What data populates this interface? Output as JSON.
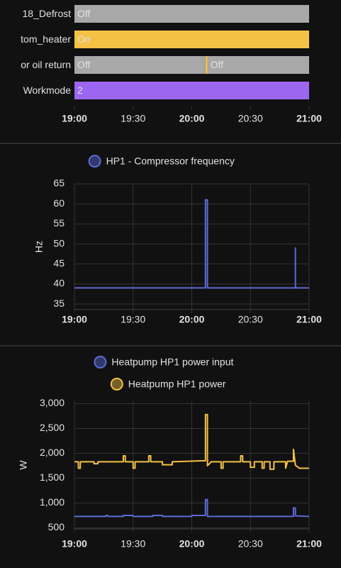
{
  "chart_data": [
    {
      "type": "timeline",
      "rows": [
        {
          "label": "18_Defrost",
          "segments": [
            {
              "start": "19:00",
              "end": "21:00",
              "label": "Off",
              "color": "#a8a8a8"
            }
          ]
        },
        {
          "label": "tom_heater",
          "segments": [
            {
              "start": "19:00",
              "end": "21:00",
              "label": "On",
              "color": "#f4c144"
            }
          ]
        },
        {
          "label": "or oil return",
          "segments": [
            {
              "start": "19:00",
              "end": "20:07",
              "label": "Off",
              "color": "#a8a8a8"
            },
            {
              "start": "20:07",
              "end": "20:08",
              "color": "#f4c144"
            },
            {
              "start": "20:08",
              "end": "21:00",
              "label": "Off",
              "color": "#a8a8a8"
            }
          ]
        },
        {
          "label": "Workmode",
          "segments": [
            {
              "start": "19:00",
              "end": "21:00",
              "label": "2",
              "color": "#9c66f0"
            }
          ]
        }
      ],
      "xlim": [
        "19:00",
        "21:00"
      ],
      "xticks": [
        "19:00",
        "19:30",
        "20:00",
        "20:30",
        "21:00"
      ]
    },
    {
      "type": "line",
      "series": [
        {
          "name": "HP1 - Compressor frequency",
          "color": "#5c6bd6",
          "x": [
            "19:00",
            "20:07",
            "20:07",
            "20:08",
            "20:08",
            "20:53",
            "20:53",
            "20:53",
            "21:00"
          ],
          "values": [
            39,
            39,
            61,
            61,
            39,
            39,
            49,
            39,
            39
          ]
        }
      ],
      "ylabel": "Hz",
      "ylim": [
        33.6,
        65
      ],
      "yticks": [
        35,
        40,
        45,
        50,
        55,
        60,
        65
      ],
      "xlim": [
        "19:00",
        "21:00"
      ],
      "xticks": [
        "19:00",
        "19:30",
        "20:00",
        "20:30",
        "21:00"
      ],
      "grid": true
    },
    {
      "type": "line",
      "series": [
        {
          "name": "Heatpump HP1 power input",
          "color": "#5c6bd6",
          "x": [
            "19:00",
            "19:16",
            "19:16",
            "19:17",
            "19:17",
            "19:25",
            "19:25",
            "19:30",
            "19:30",
            "19:40",
            "19:40",
            "19:45",
            "19:45",
            "20:00",
            "20:00",
            "20:07",
            "20:07",
            "20:08",
            "20:08",
            "20:52",
            "20:52",
            "20:53",
            "20:53",
            "21:00"
          ],
          "values": [
            730,
            730,
            750,
            750,
            730,
            730,
            750,
            750,
            730,
            730,
            750,
            750,
            730,
            730,
            750,
            750,
            1070,
            1070,
            730,
            730,
            900,
            900,
            740,
            730
          ]
        },
        {
          "name": "Heatpump HP1 power",
          "color": "#f4c144",
          "x": [
            "19:00",
            "19:02",
            "19:02",
            "19:03",
            "19:03",
            "19:10",
            "19:10",
            "19:12",
            "19:12",
            "19:25",
            "19:25",
            "19:26",
            "19:26",
            "19:30",
            "19:30",
            "19:31",
            "19:31",
            "19:38",
            "19:38",
            "19:39",
            "19:39",
            "19:45",
            "19:45",
            "19:50",
            "19:50",
            "20:05",
            "20:07",
            "20:07",
            "20:08",
            "20:08",
            "20:10",
            "20:15",
            "20:15",
            "20:16",
            "20:16",
            "20:25",
            "20:25",
            "20:26",
            "20:26",
            "20:30",
            "20:30",
            "20:32",
            "20:32",
            "20:36",
            "20:36",
            "20:37",
            "20:37",
            "20:40",
            "20:40",
            "20:42",
            "20:42",
            "20:48",
            "20:48",
            "20:49",
            "20:52",
            "20:52",
            "20:53",
            "20:55",
            "21:00"
          ],
          "values": [
            1830,
            1830,
            1700,
            1700,
            1830,
            1830,
            1790,
            1790,
            1830,
            1830,
            1950,
            1950,
            1830,
            1830,
            1700,
            1700,
            1830,
            1830,
            1950,
            1950,
            1830,
            1830,
            1770,
            1770,
            1830,
            1850,
            1850,
            2780,
            2780,
            1750,
            1830,
            1830,
            1700,
            1700,
            1830,
            1830,
            1950,
            1950,
            1830,
            1830,
            1720,
            1720,
            1830,
            1830,
            1700,
            1700,
            1830,
            1830,
            1680,
            1680,
            1830,
            1830,
            1700,
            1840,
            1840,
            2080,
            1760,
            1700,
            1700
          ]
        }
      ],
      "ylabel": "W",
      "ylim": [
        478,
        3050
      ],
      "yticks": [
        {
          "value": 500,
          "label": "500"
        },
        {
          "value": 1000,
          "label": "1,000"
        },
        {
          "value": 1500,
          "label": "1,500"
        },
        {
          "value": 2000,
          "label": "2,000"
        },
        {
          "value": 2500,
          "label": "2,500"
        },
        {
          "value": 3000,
          "label": "3,000"
        }
      ],
      "xlim": [
        "19:00",
        "21:00"
      ],
      "xticks": [
        "19:00",
        "19:30",
        "20:00",
        "20:30",
        "21:00"
      ],
      "grid": true
    }
  ]
}
